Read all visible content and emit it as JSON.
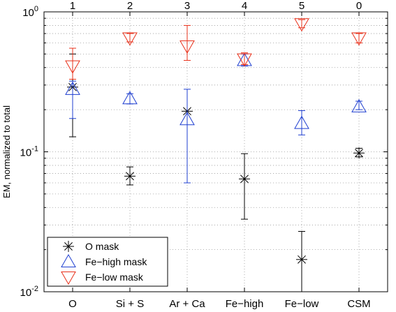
{
  "chart_data": {
    "type": "scatter",
    "title": "",
    "xlabel": "",
    "ylabel": "EM, normalized to total",
    "yscale": "log",
    "ylim": [
      0.01,
      1
    ],
    "grid": true,
    "legend_position": "bottom-left",
    "categories": [
      "O",
      "Si + S",
      "Ar + Ca",
      "Fe−high",
      "Fe−low",
      "CSM"
    ],
    "top_labels": [
      "1",
      "2",
      "3",
      "4",
      "5",
      "0"
    ],
    "y_tick_labels": [
      {
        "base": "10",
        "exp": "0",
        "value": 1
      },
      {
        "base": "10",
        "exp": "-1",
        "value": 0.1
      },
      {
        "base": "10",
        "exp": "-2",
        "value": 0.01
      }
    ],
    "series": [
      {
        "name": "O mask",
        "marker": "asterisk",
        "color": "#000000",
        "values": [
          0.29,
          0.067,
          0.195,
          0.064,
          0.017,
          0.098
        ],
        "err_low": [
          0.128,
          0.058,
          null,
          0.033,
          0.01,
          0.092
        ],
        "err_high": [
          0.5,
          0.078,
          null,
          0.097,
          0.027,
          0.106
        ]
      },
      {
        "name": "Fe−high mask",
        "marker": "triangle-up",
        "color": "#1f3fd0",
        "values": [
          0.28,
          0.24,
          0.17,
          0.45,
          0.16,
          0.21
        ],
        "err_low": [
          0.173,
          0.22,
          0.06,
          0.41,
          0.132,
          0.2
        ],
        "err_high": [
          0.32,
          0.26,
          0.28,
          0.5,
          0.197,
          0.23
        ]
      },
      {
        "name": "Fe−low mask",
        "marker": "triangle-down",
        "color": "#e8301a",
        "values": [
          0.41,
          0.65,
          0.57,
          0.46,
          0.82,
          0.65
        ],
        "err_low": [
          0.33,
          0.61,
          0.45,
          0.42,
          0.77,
          0.6
        ],
        "err_high": [
          0.55,
          0.7,
          0.8,
          0.51,
          0.88,
          0.7
        ]
      }
    ]
  }
}
